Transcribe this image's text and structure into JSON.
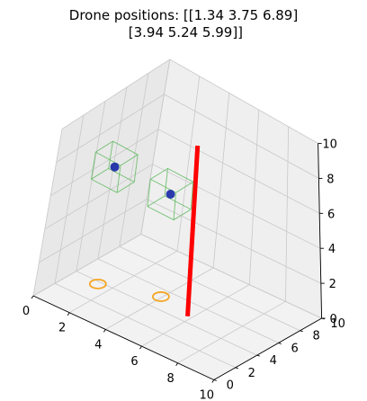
{
  "chart_data": {
    "type": "scatter",
    "title_lines": [
      "Drone positions: [[1.34 3.75 6.89]",
      " [3.94 5.24 5.99]]"
    ],
    "xlim": [
      0,
      10
    ],
    "ylim": [
      0,
      10
    ],
    "zlim": [
      0,
      10
    ],
    "x_ticks": [
      "0",
      "2",
      "4",
      "6",
      "8",
      "10"
    ],
    "y_ticks": [
      "0",
      "2",
      "4",
      "6",
      "8",
      "10"
    ],
    "z_ticks": [
      "0",
      "2",
      "4",
      "6",
      "8",
      "10"
    ],
    "grid": true,
    "series": [
      {
        "points": [
          {
            "x": 1.34,
            "y": 3.75,
            "z": 6.89
          },
          {
            "x": 3.94,
            "y": 5.24,
            "z": 5.99
          }
        ],
        "color": "#1f2fa8"
      }
    ],
    "bounding_box_color": "#5cb85c",
    "ground_shadow_color": "#f5a623",
    "obstacle": {
      "x": 5.8,
      "y": 4.6,
      "z_from": 0,
      "z_to": 10,
      "color": "#ff0000"
    }
  }
}
